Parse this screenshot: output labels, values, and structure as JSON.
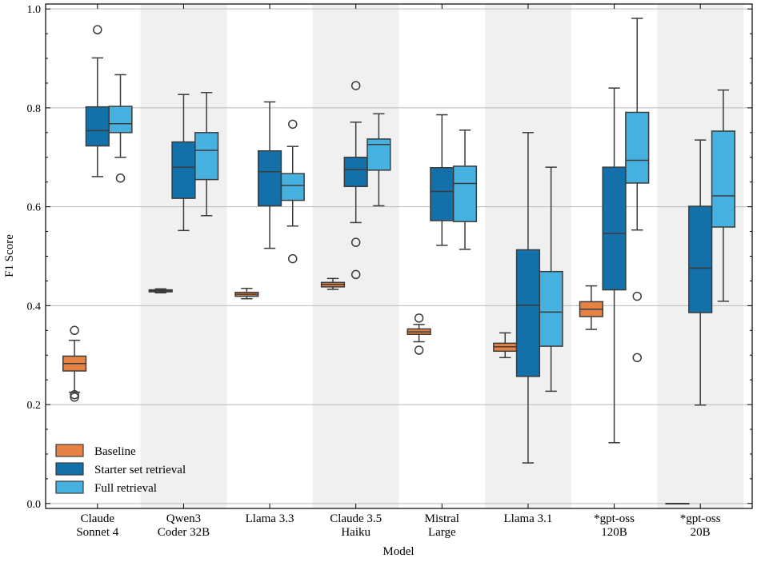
{
  "chart_data": {
    "type": "box",
    "xlabel": "Model",
    "ylabel": "F1 Score",
    "ylim": [
      -0.01,
      1.01
    ],
    "yticks": [
      "0.0",
      "0.2",
      "0.4",
      "0.6",
      "0.8",
      "1.0"
    ],
    "ytick_values": [
      0.0,
      0.2,
      0.4,
      0.6,
      0.8,
      1.0
    ],
    "grid": "horizontal",
    "legend_position": "lower-left",
    "categories": [
      [
        "Claude",
        "Sonnet 4"
      ],
      [
        "Qwen3",
        "Coder 32B"
      ],
      [
        "Llama 3.3"
      ],
      [
        "Claude 3.5",
        "Haiku"
      ],
      [
        "Mistral",
        "Large"
      ],
      [
        "Llama 3.1"
      ],
      [
        "*gpt-oss",
        "120B"
      ],
      [
        "*gpt-oss",
        "20B"
      ]
    ],
    "series": [
      {
        "name": "Baseline",
        "color": "#e58244",
        "boxes": [
          {
            "whislo": 0.225,
            "q1": 0.268,
            "med": 0.283,
            "q3": 0.298,
            "whishi": 0.33,
            "fliers": [
              0.35,
              0.215,
              0.22
            ]
          },
          {
            "whislo": 0.426,
            "q1": 0.428,
            "med": 0.43,
            "q3": 0.432,
            "whishi": 0.434,
            "fliers": []
          },
          {
            "whislo": 0.414,
            "q1": 0.419,
            "med": 0.423,
            "q3": 0.427,
            "whishi": 0.435,
            "fliers": []
          },
          {
            "whislo": 0.433,
            "q1": 0.438,
            "med": 0.443,
            "q3": 0.447,
            "whishi": 0.455,
            "fliers": []
          },
          {
            "whislo": 0.327,
            "q1": 0.342,
            "med": 0.347,
            "q3": 0.353,
            "whishi": 0.362,
            "fliers": [
              0.375,
              0.31
            ]
          },
          {
            "whislo": 0.295,
            "q1": 0.308,
            "med": 0.317,
            "q3": 0.324,
            "whishi": 0.345,
            "fliers": []
          },
          {
            "whislo": 0.352,
            "q1": 0.378,
            "med": 0.393,
            "q3": 0.408,
            "whishi": 0.44,
            "fliers": []
          },
          {
            "whislo": 0.0,
            "q1": 0.0,
            "med": 0.0,
            "q3": 0.0,
            "whishi": 0.0,
            "fliers": []
          }
        ]
      },
      {
        "name": "Starter set retrieval",
        "color": "#1470a8",
        "boxes": [
          {
            "whislo": 0.661,
            "q1": 0.723,
            "med": 0.754,
            "q3": 0.802,
            "whishi": 0.901,
            "fliers": [
              0.958
            ]
          },
          {
            "whislo": 0.552,
            "q1": 0.617,
            "med": 0.68,
            "q3": 0.731,
            "whishi": 0.827,
            "fliers": []
          },
          {
            "whislo": 0.516,
            "q1": 0.602,
            "med": 0.671,
            "q3": 0.713,
            "whishi": 0.812,
            "fliers": []
          },
          {
            "whislo": 0.568,
            "q1": 0.641,
            "med": 0.675,
            "q3": 0.7,
            "whishi": 0.771,
            "fliers": [
              0.845,
              0.528,
              0.463
            ]
          },
          {
            "whislo": 0.522,
            "q1": 0.572,
            "med": 0.631,
            "q3": 0.679,
            "whishi": 0.786,
            "fliers": []
          },
          {
            "whislo": 0.082,
            "q1": 0.257,
            "med": 0.401,
            "q3": 0.513,
            "whishi": 0.75,
            "fliers": []
          },
          {
            "whislo": 0.123,
            "q1": 0.432,
            "med": 0.546,
            "q3": 0.68,
            "whishi": 0.84,
            "fliers": []
          },
          {
            "whislo": 0.199,
            "q1": 0.386,
            "med": 0.476,
            "q3": 0.601,
            "whishi": 0.735,
            "fliers": []
          }
        ]
      },
      {
        "name": "Full retrieval",
        "color": "#46b1df",
        "boxes": [
          {
            "whislo": 0.7,
            "q1": 0.75,
            "med": 0.768,
            "q3": 0.803,
            "whishi": 0.867,
            "fliers": [
              0.658
            ]
          },
          {
            "whislo": 0.582,
            "q1": 0.655,
            "med": 0.714,
            "q3": 0.75,
            "whishi": 0.831,
            "fliers": []
          },
          {
            "whislo": 0.561,
            "q1": 0.613,
            "med": 0.643,
            "q3": 0.667,
            "whishi": 0.722,
            "fliers": [
              0.767,
              0.495
            ]
          },
          {
            "whislo": 0.602,
            "q1": 0.674,
            "med": 0.726,
            "q3": 0.737,
            "whishi": 0.788,
            "fliers": []
          },
          {
            "whislo": 0.514,
            "q1": 0.57,
            "med": 0.647,
            "q3": 0.682,
            "whishi": 0.755,
            "fliers": []
          },
          {
            "whislo": 0.227,
            "q1": 0.318,
            "med": 0.387,
            "q3": 0.469,
            "whishi": 0.68,
            "fliers": []
          },
          {
            "whislo": 0.553,
            "q1": 0.648,
            "med": 0.694,
            "q3": 0.791,
            "whishi": 0.981,
            "fliers": [
              0.419,
              0.295
            ]
          },
          {
            "whislo": 0.409,
            "q1": 0.559,
            "med": 0.622,
            "q3": 0.753,
            "whishi": 0.836,
            "fliers": []
          }
        ]
      }
    ]
  }
}
